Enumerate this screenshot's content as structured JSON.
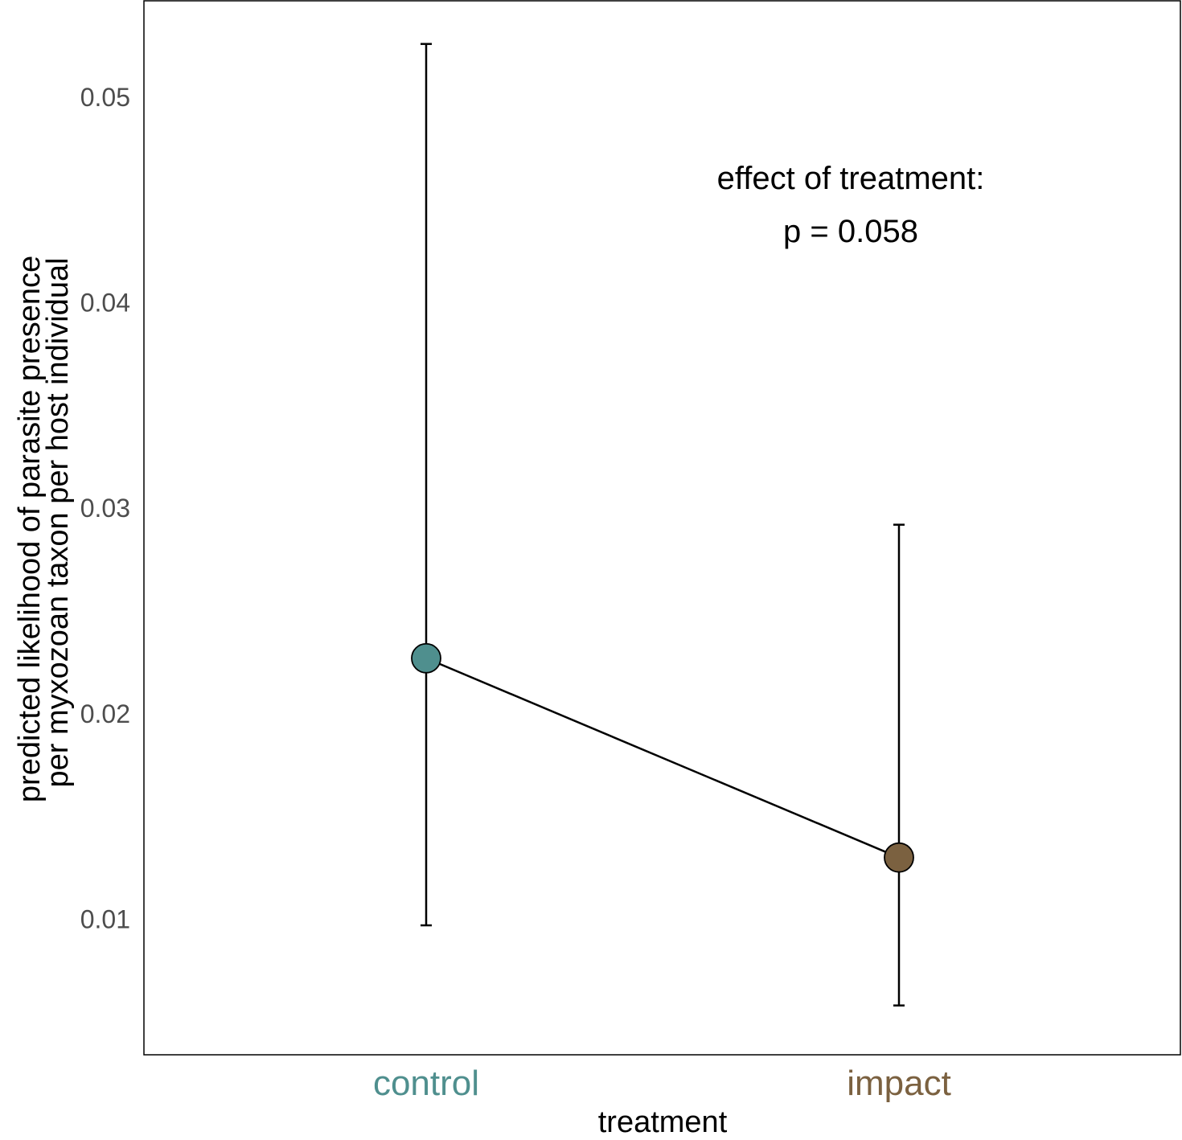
{
  "chart_data": {
    "type": "line",
    "title": "",
    "xlabel": "treatment",
    "ylabel_lines": [
      "predicted likelihood of parasite presence",
      "per myxozoan taxon per host individual"
    ],
    "categories": [
      "control",
      "impact"
    ],
    "category_colors": [
      "#4f8f8e",
      "#7b6140"
    ],
    "series": [
      {
        "values": [
          0.0227,
          0.013
        ],
        "ci_lower": [
          0.0097,
          0.0058
        ],
        "ci_upper": [
          0.0526,
          0.0292
        ]
      }
    ],
    "y_ticks": [
      "0.01",
      "0.02",
      "0.03",
      "0.04",
      "0.05"
    ],
    "ylim": [
      0.0034,
      0.0547
    ],
    "annotation_lines": [
      "effect of treatment:",
      "p = 0.058"
    ],
    "grid": false,
    "legend": "none"
  }
}
